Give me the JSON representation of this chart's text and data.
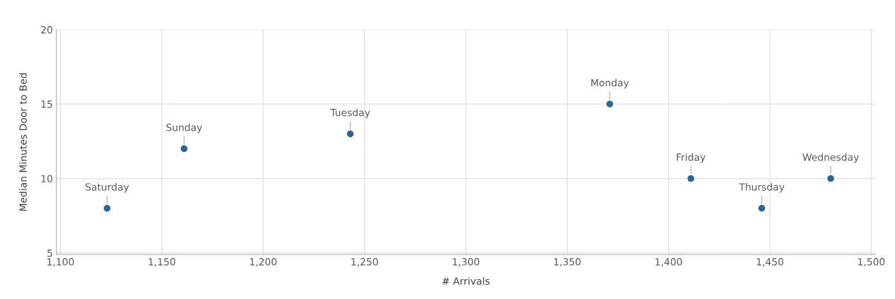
{
  "chart_data": {
    "type": "scatter",
    "xlabel": "# Arrivals",
    "ylabel": "Median Minutes Door to Bed",
    "x": [
      1123,
      1161,
      1243,
      1371,
      1411,
      1446,
      1480
    ],
    "series": [
      {
        "color": "#2f6496",
        "values": [
          8,
          12,
          13,
          15,
          10,
          8,
          10
        ]
      }
    ],
    "annotations": [
      {
        "text": "Saturday",
        "x": 1123,
        "y": 8
      },
      {
        "text": "Sunday",
        "x": 1161,
        "y": 12
      },
      {
        "text": "Tuesday",
        "x": 1243,
        "y": 13
      },
      {
        "text": "Monday",
        "x": 1371,
        "y": 15
      },
      {
        "text": "Friday",
        "x": 1411,
        "y": 10
      },
      {
        "text": "Thursday",
        "x": 1446,
        "y": 8
      },
      {
        "text": "Wednesday",
        "x": 1480,
        "y": 10
      }
    ],
    "xlim": [
      1098,
      1502
    ],
    "xticks": [
      {
        "value": 1100,
        "label": "1,100"
      },
      {
        "value": 1150,
        "label": "1,150"
      },
      {
        "value": 1200,
        "label": "1,200"
      },
      {
        "value": 1250,
        "label": "1,250"
      },
      {
        "value": 1300,
        "label": "1,300"
      },
      {
        "value": 1350,
        "label": "1,350"
      },
      {
        "value": 1400,
        "label": "1,400"
      },
      {
        "value": 1450,
        "label": "1,450"
      },
      {
        "value": 1500,
        "label": "1,500"
      }
    ],
    "ylim": [
      4.9,
      20
    ],
    "yticks": [
      5,
      10,
      15,
      20
    ],
    "grid": true,
    "marker": "circle",
    "legend": false
  }
}
